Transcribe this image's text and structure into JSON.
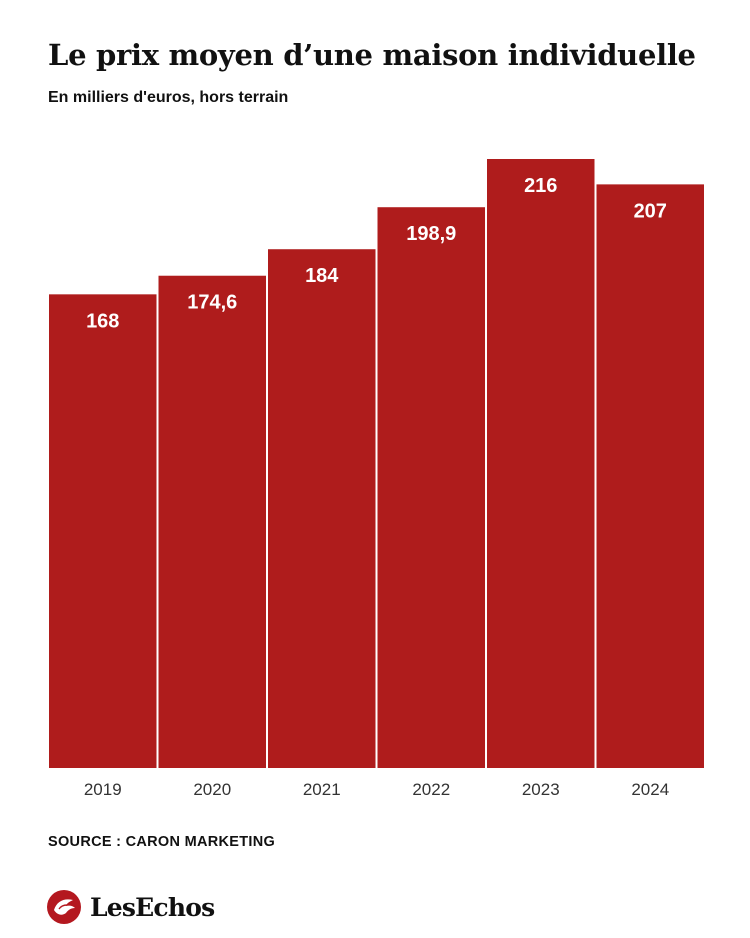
{
  "header": {
    "title": "Le prix moyen d’une maison individuelle",
    "subtitle": "En milliers d'euros, hors terrain"
  },
  "footer": {
    "source": "SOURCE : CARON MARKETING",
    "brand": "LesEchos"
  },
  "colors": {
    "bar": "#af1c1c",
    "label": "#ffffff",
    "text": "#111111",
    "axis": "#333333",
    "logo": "#b4181f"
  },
  "chart_data": {
    "type": "bar",
    "title": "Le prix moyen d’une maison individuelle",
    "subtitle": "En milliers d'euros, hors terrain",
    "xlabel": "",
    "ylabel": "",
    "categories": [
      "2019",
      "2020",
      "2021",
      "2022",
      "2023",
      "2024"
    ],
    "values": [
      168,
      174.6,
      184,
      198.9,
      216,
      207
    ],
    "labels": [
      "168",
      "174,6",
      "184",
      "198,9",
      "216",
      "207"
    ],
    "ylim": [
      0,
      216
    ],
    "grid": false,
    "legend": "none"
  }
}
